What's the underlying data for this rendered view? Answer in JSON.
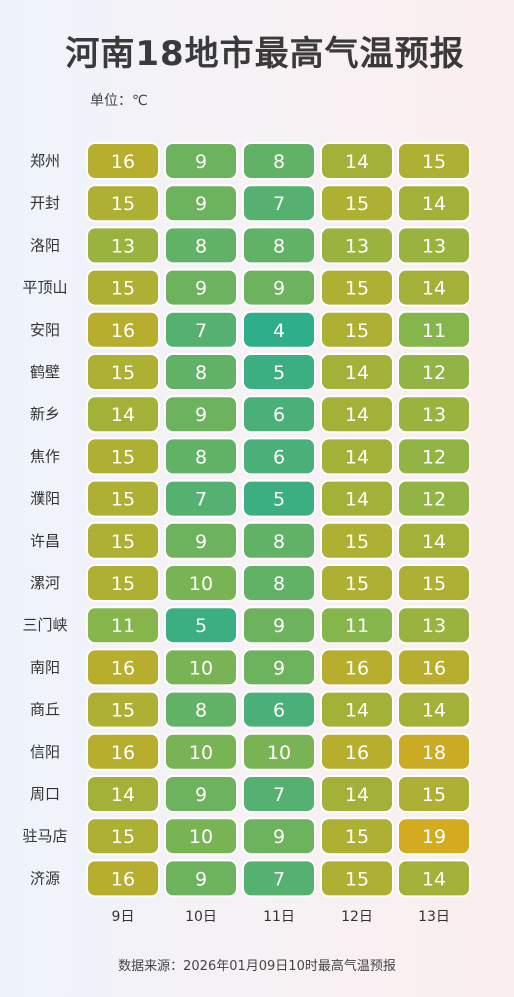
{
  "chart_data": {
    "type": "heatmap",
    "title": "河南18地市最高气温预报",
    "unit_label": "单位：℃",
    "columns": [
      "9日",
      "10日",
      "11日",
      "12日",
      "13日"
    ],
    "rows": [
      "郑州",
      "开封",
      "洛阳",
      "平顶山",
      "安阳",
      "鹤壁",
      "新乡",
      "焦作",
      "濮阳",
      "许昌",
      "漯河",
      "三门峡",
      "南阳",
      "商丘",
      "信阳",
      "周口",
      "驻马店",
      "济源"
    ],
    "values": [
      [
        16,
        9,
        8,
        14,
        15
      ],
      [
        15,
        9,
        7,
        15,
        14
      ],
      [
        13,
        8,
        8,
        13,
        13
      ],
      [
        15,
        9,
        9,
        15,
        14
      ],
      [
        16,
        7,
        4,
        15,
        11
      ],
      [
        15,
        8,
        5,
        14,
        12
      ],
      [
        14,
        9,
        6,
        14,
        13
      ],
      [
        15,
        8,
        6,
        14,
        12
      ],
      [
        15,
        7,
        5,
        14,
        12
      ],
      [
        15,
        9,
        8,
        15,
        14
      ],
      [
        15,
        10,
        8,
        15,
        15
      ],
      [
        11,
        5,
        9,
        11,
        13
      ],
      [
        16,
        10,
        9,
        16,
        16
      ],
      [
        15,
        8,
        6,
        14,
        14
      ],
      [
        16,
        10,
        10,
        16,
        18
      ],
      [
        14,
        9,
        7,
        14,
        15
      ],
      [
        15,
        10,
        9,
        15,
        19
      ],
      [
        16,
        9,
        7,
        15,
        14
      ]
    ],
    "value_range": [
      4,
      19
    ],
    "colors": {
      "low": "#2fae8a",
      "mid": "#8cb547",
      "high": "#d4aa1e",
      "cell_border": "#ffffff"
    }
  },
  "footer": {
    "source": "数据来源：2026年01月09日10时最高气温预报"
  }
}
